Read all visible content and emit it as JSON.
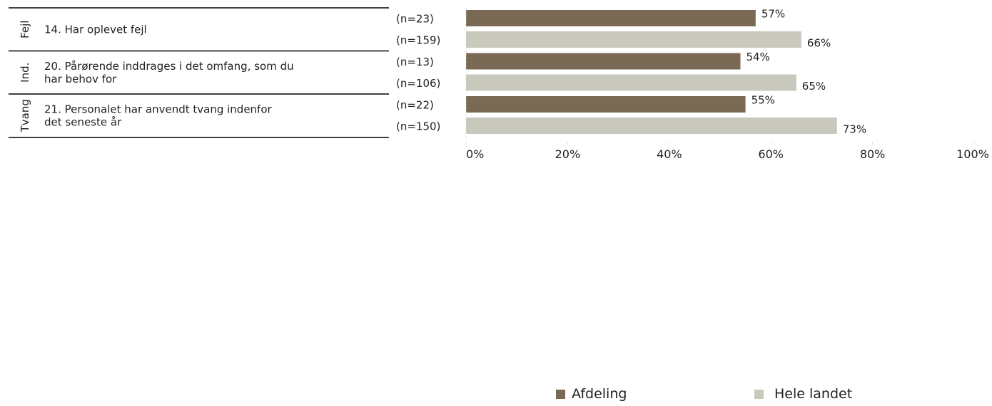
{
  "chart_data": {
    "type": "bar",
    "orientation": "horizontal",
    "groups": [
      {
        "category": "Fejl",
        "question": "14. Har oplevet fejl",
        "n_labels": [
          "(n=23)",
          "(n=159)"
        ],
        "values": [
          57,
          66
        ],
        "value_labels": [
          "57%",
          "66%"
        ]
      },
      {
        "category": "Ind.",
        "question": "20. Pårørende inddrages i det omfang, som du har behov for",
        "n_labels": [
          "(n=13)",
          "(n=106)"
        ],
        "values": [
          54,
          65
        ],
        "value_labels": [
          "54%",
          "65%"
        ]
      },
      {
        "category": "Tvang",
        "question": "21. Personalet har anvendt tvang indenfor det seneste år",
        "n_labels": [
          "(n=22)",
          "(n=150)"
        ],
        "values": [
          55,
          73
        ],
        "value_labels": [
          "55%",
          "73%"
        ]
      }
    ],
    "series": [
      {
        "name": "Afdeling",
        "color": "#7a6a55"
      },
      {
        "name": "Hele landet",
        "color": "#c8c8bc"
      }
    ],
    "xlim": [
      0,
      100
    ],
    "xticks": [
      "0%",
      "20%",
      "40%",
      "60%",
      "80%",
      "100%"
    ],
    "grid": false,
    "legend_position": "bottom"
  }
}
